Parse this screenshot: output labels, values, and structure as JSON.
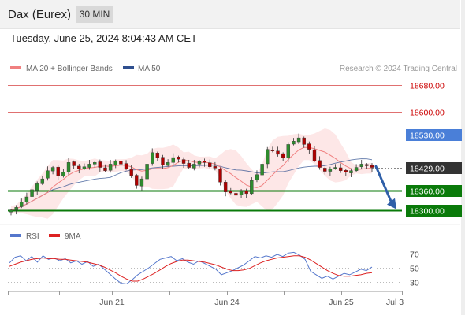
{
  "header": {
    "instrument": "Dax (Eurex)",
    "timeframe": "30 MIN",
    "datetime": "Tuesday, June 25, 2024 8:04:43 AM CET"
  },
  "colors": {
    "ma20_bollinger": "#f08080",
    "ma50": "#2f4f8f",
    "bullish_candle": "#2e8b2e",
    "bearish_candle": "#b00000",
    "resistance": "#e07070",
    "pivot": "#4a7fd8",
    "support": "#0a7a0a",
    "current_price": "#333333",
    "rsi": "#5577cc",
    "rsi_9ma": "#dd2222",
    "forecast_arrow": "#2f5fa8"
  },
  "chart_data": [
    {
      "type": "line",
      "legend": [
        {
          "name": "MA 20 + Bollinger Bands",
          "color": "#f08080"
        },
        {
          "name": "MA 50",
          "color": "#2f4f8f"
        }
      ],
      "watermark": "Research © 2024 Trading Central",
      "ylim": [
        18280,
        18710
      ],
      "price_levels": [
        {
          "label": "18680.00",
          "value": 18680,
          "kind": "resistance"
        },
        {
          "label": "18600.00",
          "value": 18600,
          "kind": "resistance"
        },
        {
          "label": "18530.00",
          "value": 18530,
          "kind": "pivot"
        },
        {
          "label": "18429.00",
          "value": 18429,
          "kind": "current"
        },
        {
          "label": "18360.00",
          "value": 18360,
          "kind": "support"
        },
        {
          "label": "18300.00",
          "value": 18300,
          "kind": "support"
        }
      ],
      "x_labels": [
        "Jun 21",
        "Jun 24",
        "Jun 25",
        "Jul 3"
      ],
      "close_approx": [
        18300,
        18308,
        18325,
        18340,
        18362,
        18380,
        18395,
        18420,
        18430,
        18405,
        18415,
        18445,
        18435,
        18425,
        18432,
        18440,
        18445,
        18430,
        18420,
        18440,
        18450,
        18440,
        18425,
        18405,
        18375,
        18395,
        18440,
        18475,
        18460,
        18438,
        18445,
        18460,
        18455,
        18442,
        18430,
        18440,
        18448,
        18445,
        18432,
        18428,
        18385,
        18355,
        18352,
        18345,
        18360,
        18350,
        18390,
        18408,
        18440,
        18485,
        18480,
        18470,
        18460,
        18500,
        18510,
        18520,
        18500,
        18485,
        18450,
        18430,
        18418,
        18425,
        18430,
        18420,
        18415,
        18420,
        18430,
        18440,
        18435,
        18430
      ],
      "forecast_arrow": {
        "from": 18433,
        "to": 18300
      }
    },
    {
      "type": "line",
      "legend": [
        {
          "name": "RSI",
          "color": "#5577cc"
        },
        {
          "name": "9MA",
          "color": "#dd2222"
        }
      ],
      "levels": [
        {
          "label": "70",
          "value": 70
        },
        {
          "label": "50",
          "value": 50
        },
        {
          "label": "30",
          "value": 30
        }
      ],
      "ylim": [
        22,
        78
      ],
      "rsi_approx": [
        57,
        65,
        67,
        60,
        66,
        58,
        67,
        62,
        64,
        60,
        63,
        57,
        60,
        55,
        59,
        52,
        55,
        48,
        41,
        34,
        28,
        27,
        33,
        40,
        45,
        50,
        56,
        62,
        64,
        66,
        60,
        63,
        58,
        55,
        60,
        56,
        52,
        48,
        40,
        43,
        46,
        50,
        54,
        60,
        66,
        64,
        67,
        65,
        69,
        66,
        71,
        72,
        68,
        62,
        45,
        40,
        35,
        38,
        34,
        38,
        42,
        40,
        44,
        48,
        46,
        51
      ],
      "ma9_approx": [
        52,
        55,
        58,
        60,
        62,
        63,
        64,
        63,
        63,
        62,
        62,
        61,
        60,
        59,
        58,
        56,
        54,
        51,
        47,
        43,
        38,
        34,
        31,
        31,
        34,
        38,
        42,
        47,
        52,
        56,
        59,
        61,
        61,
        60,
        59,
        58,
        56,
        54,
        51,
        48,
        46,
        46,
        47,
        49,
        53,
        57,
        60,
        62,
        64,
        65,
        66,
        67,
        67,
        65,
        61,
        56,
        51,
        46,
        42,
        39,
        38,
        38,
        39,
        40,
        42,
        43
      ]
    }
  ]
}
